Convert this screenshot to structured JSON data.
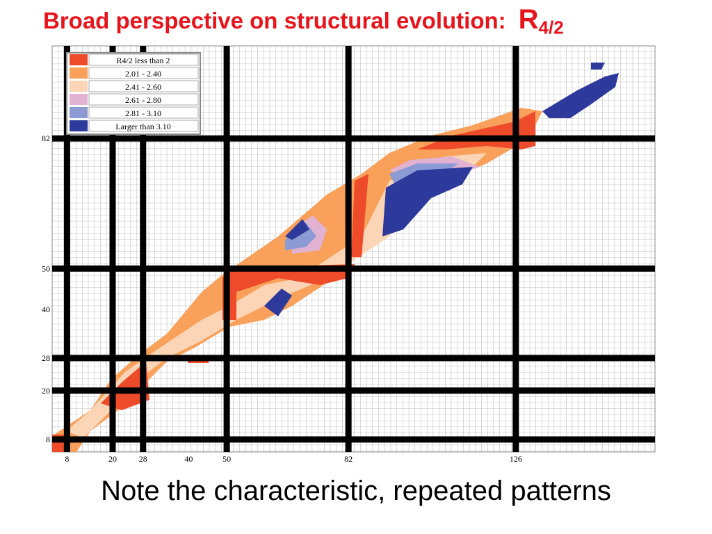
{
  "title": {
    "text": "Broad perspective on structural evolution:",
    "symbol": "R",
    "subscript": "4/2"
  },
  "legend": [
    "R4/2 less than 2",
    "2.01 - 2.40",
    "2.41 - 2.60",
    "2.61 - 2.80",
    "2.81 - 3.10",
    "Larger than 3.10"
  ],
  "legend_colors": [
    "#ee4b2b",
    "#f9a05a",
    "#fbd5b5",
    "#e2b2d2",
    "#8c9bd4",
    "#2d3a9c"
  ],
  "magic_numbers": [
    8,
    20,
    28,
    50,
    82,
    126
  ],
  "x_ticks": [
    8,
    20,
    28,
    40,
    50,
    82,
    126
  ],
  "y_ticks": [
    8,
    20,
    28,
    40,
    50,
    82
  ],
  "footer": "Note the characteristic, repeated patterns"
}
